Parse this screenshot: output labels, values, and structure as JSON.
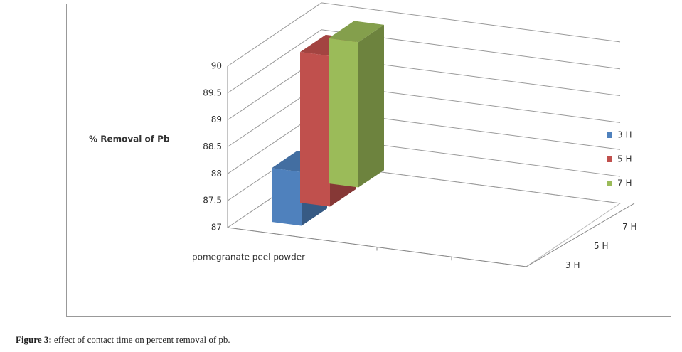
{
  "chart_data": {
    "type": "bar3d",
    "y_label": "% Removal of Pb",
    "categories": [
      "pomegranate peel powder"
    ],
    "series": [
      {
        "name": "3 H",
        "color": "#4f81bd",
        "values": [
          88.0
        ]
      },
      {
        "name": "5 H",
        "color": "#c0504d",
        "values": [
          89.8
        ]
      },
      {
        "name": "7 H",
        "color": "#9bbb59",
        "values": [
          89.7
        ]
      }
    ],
    "ylim": [
      87,
      90
    ],
    "yticks": [
      87,
      87.5,
      88,
      88.5,
      89,
      89.5,
      90
    ],
    "grid": true,
    "legend": "right"
  },
  "caption": {
    "label": "Figure 3:",
    "text": "effect of contact time on percent removal of pb."
  }
}
